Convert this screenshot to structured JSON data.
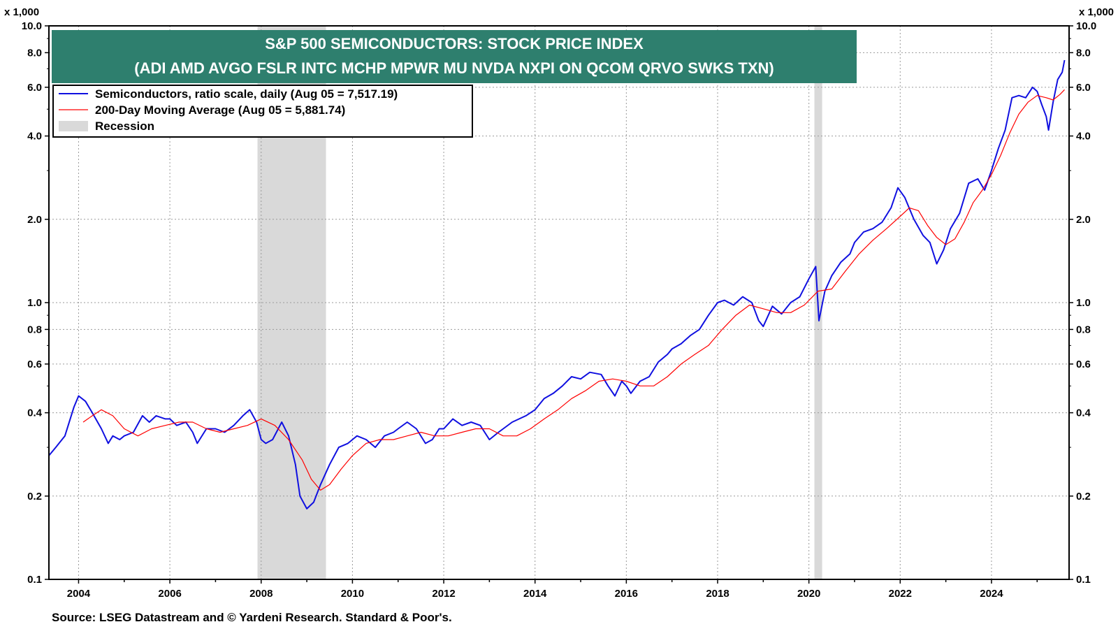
{
  "chart_data": {
    "type": "line",
    "title": "S&P 500 SEMICONDUCTORS: STOCK PRICE INDEX",
    "subtitle": "(ADI AMD AVGO FSLR INTC MCHP MPWR MU NVDA NXPI ON QCOM QRVO SWKS TXN)",
    "y_unit_left": "x 1,000",
    "y_unit_right": "x 1,000",
    "yscale": "log",
    "ylim": [
      0.1,
      10.0
    ],
    "xlim": [
      2003.35,
      2025.7
    ],
    "y_ticks": [
      {
        "value": 0.1,
        "label": "0.1"
      },
      {
        "value": 0.2,
        "label": "0.2"
      },
      {
        "value": 0.4,
        "label": "0.4"
      },
      {
        "value": 0.6,
        "label": "0.6"
      },
      {
        "value": 0.8,
        "label": "0.8"
      },
      {
        "value": 1.0,
        "label": "1.0"
      },
      {
        "value": 2.0,
        "label": "2.0"
      },
      {
        "value": 4.0,
        "label": "4.0"
      },
      {
        "value": 6.0,
        "label": "6.0"
      },
      {
        "value": 8.0,
        "label": "8.0"
      },
      {
        "value": 10.0,
        "label": "10.0"
      }
    ],
    "x_ticks": [
      {
        "value": 2004,
        "label": "2004"
      },
      {
        "value": 2006,
        "label": "2006"
      },
      {
        "value": 2008,
        "label": "2008"
      },
      {
        "value": 2010,
        "label": "2010"
      },
      {
        "value": 2012,
        "label": "2012"
      },
      {
        "value": 2014,
        "label": "2014"
      },
      {
        "value": 2016,
        "label": "2016"
      },
      {
        "value": 2018,
        "label": "2018"
      },
      {
        "value": 2020,
        "label": "2020"
      },
      {
        "value": 2022,
        "label": "2022"
      },
      {
        "value": 2024,
        "label": "2024"
      }
    ],
    "grid": true,
    "recessions": [
      {
        "start": 2007.92,
        "end": 2009.42
      },
      {
        "start": 2020.12,
        "end": 2020.29
      }
    ],
    "series": [
      {
        "name": "Semiconductors, ratio scale, daily (Aug 05 = 7,517.19)",
        "color": "#1010e0",
        "x": [
          2003.35,
          2003.5,
          2003.7,
          2003.9,
          2004.0,
          2004.15,
          2004.3,
          2004.5,
          2004.65,
          2004.75,
          2004.9,
          2005.0,
          2005.2,
          2005.4,
          2005.55,
          2005.7,
          2005.9,
          2006.0,
          2006.15,
          2006.35,
          2006.5,
          2006.6,
          2006.8,
          2007.0,
          2007.2,
          2007.4,
          2007.6,
          2007.75,
          2007.9,
          2008.0,
          2008.1,
          2008.25,
          2008.45,
          2008.6,
          2008.75,
          2008.85,
          2009.0,
          2009.15,
          2009.3,
          2009.5,
          2009.7,
          2009.9,
          2010.1,
          2010.3,
          2010.5,
          2010.7,
          2010.9,
          2011.0,
          2011.2,
          2011.4,
          2011.6,
          2011.75,
          2011.9,
          2012.0,
          2012.2,
          2012.4,
          2012.6,
          2012.8,
          2013.0,
          2013.2,
          2013.5,
          2013.8,
          2014.0,
          2014.2,
          2014.4,
          2014.6,
          2014.8,
          2015.0,
          2015.2,
          2015.45,
          2015.6,
          2015.75,
          2015.9,
          2016.0,
          2016.1,
          2016.3,
          2016.5,
          2016.7,
          2016.9,
          2017.0,
          2017.2,
          2017.4,
          2017.6,
          2017.8,
          2018.0,
          2018.15,
          2018.35,
          2018.55,
          2018.75,
          2018.9,
          2019.0,
          2019.2,
          2019.4,
          2019.6,
          2019.8,
          2020.0,
          2020.15,
          2020.22,
          2020.35,
          2020.5,
          2020.7,
          2020.9,
          2021.0,
          2021.2,
          2021.4,
          2021.6,
          2021.8,
          2021.95,
          2022.1,
          2022.3,
          2022.5,
          2022.65,
          2022.8,
          2022.95,
          2023.1,
          2023.3,
          2023.5,
          2023.7,
          2023.85,
          2024.0,
          2024.15,
          2024.3,
          2024.45,
          2024.6,
          2024.75,
          2024.9,
          2025.0,
          2025.1,
          2025.2,
          2025.25,
          2025.35,
          2025.45,
          2025.55,
          2025.6
        ],
        "values": [
          0.28,
          0.3,
          0.33,
          0.42,
          0.46,
          0.44,
          0.4,
          0.35,
          0.31,
          0.33,
          0.32,
          0.33,
          0.34,
          0.39,
          0.37,
          0.39,
          0.38,
          0.38,
          0.36,
          0.37,
          0.34,
          0.31,
          0.35,
          0.35,
          0.34,
          0.36,
          0.39,
          0.41,
          0.37,
          0.32,
          0.31,
          0.32,
          0.37,
          0.33,
          0.26,
          0.2,
          0.18,
          0.19,
          0.22,
          0.26,
          0.3,
          0.31,
          0.33,
          0.32,
          0.3,
          0.33,
          0.34,
          0.35,
          0.37,
          0.35,
          0.31,
          0.32,
          0.35,
          0.35,
          0.38,
          0.36,
          0.37,
          0.36,
          0.32,
          0.34,
          0.37,
          0.39,
          0.41,
          0.45,
          0.47,
          0.5,
          0.54,
          0.53,
          0.56,
          0.55,
          0.5,
          0.46,
          0.52,
          0.5,
          0.47,
          0.52,
          0.54,
          0.61,
          0.65,
          0.68,
          0.71,
          0.76,
          0.8,
          0.9,
          1.0,
          1.02,
          0.98,
          1.05,
          1.0,
          0.86,
          0.82,
          0.97,
          0.91,
          1.0,
          1.05,
          1.22,
          1.35,
          0.86,
          1.1,
          1.25,
          1.4,
          1.5,
          1.65,
          1.8,
          1.85,
          1.95,
          2.2,
          2.6,
          2.4,
          2.0,
          1.75,
          1.65,
          1.38,
          1.55,
          1.85,
          2.1,
          2.7,
          2.8,
          2.55,
          3.0,
          3.6,
          4.2,
          5.5,
          5.6,
          5.5,
          6.0,
          5.8,
          5.2,
          4.7,
          4.2,
          5.3,
          6.4,
          6.8,
          7.52
        ]
      },
      {
        "name": "200-Day Moving Average (Aug 05 = 5,881.74)",
        "color": "#ff0000",
        "x": [
          2004.1,
          2004.3,
          2004.5,
          2004.75,
          2005.0,
          2005.3,
          2005.6,
          2005.9,
          2006.2,
          2006.5,
          2006.8,
          2007.1,
          2007.4,
          2007.7,
          2008.0,
          2008.3,
          2008.6,
          2008.9,
          2009.1,
          2009.3,
          2009.5,
          2009.75,
          2010.0,
          2010.3,
          2010.6,
          2010.9,
          2011.2,
          2011.5,
          2011.8,
          2012.1,
          2012.4,
          2012.7,
          2013.0,
          2013.3,
          2013.6,
          2013.9,
          2014.2,
          2014.5,
          2014.8,
          2015.1,
          2015.4,
          2015.7,
          2016.0,
          2016.3,
          2016.6,
          2016.9,
          2017.2,
          2017.5,
          2017.8,
          2018.1,
          2018.4,
          2018.7,
          2019.0,
          2019.3,
          2019.6,
          2019.9,
          2020.2,
          2020.5,
          2020.8,
          2021.1,
          2021.4,
          2021.7,
          2022.0,
          2022.2,
          2022.4,
          2022.6,
          2022.8,
          2023.0,
          2023.2,
          2023.4,
          2023.6,
          2023.8,
          2024.0,
          2024.2,
          2024.4,
          2024.6,
          2024.8,
          2025.0,
          2025.2,
          2025.35,
          2025.5,
          2025.6
        ],
        "values": [
          0.37,
          0.39,
          0.41,
          0.39,
          0.35,
          0.33,
          0.35,
          0.36,
          0.37,
          0.37,
          0.35,
          0.34,
          0.35,
          0.36,
          0.38,
          0.36,
          0.32,
          0.27,
          0.23,
          0.21,
          0.22,
          0.25,
          0.28,
          0.31,
          0.32,
          0.32,
          0.33,
          0.34,
          0.33,
          0.33,
          0.34,
          0.35,
          0.35,
          0.33,
          0.33,
          0.35,
          0.38,
          0.41,
          0.45,
          0.48,
          0.52,
          0.53,
          0.52,
          0.5,
          0.5,
          0.54,
          0.6,
          0.65,
          0.7,
          0.8,
          0.9,
          0.98,
          0.95,
          0.92,
          0.92,
          0.98,
          1.1,
          1.12,
          1.3,
          1.5,
          1.68,
          1.85,
          2.05,
          2.2,
          2.15,
          1.9,
          1.72,
          1.62,
          1.7,
          1.95,
          2.3,
          2.55,
          2.9,
          3.4,
          4.1,
          4.8,
          5.3,
          5.6,
          5.5,
          5.4,
          5.65,
          5.88
        ]
      }
    ],
    "legend": {
      "position": "top-left",
      "items": [
        {
          "label": "Semiconductors, ratio scale, daily (Aug 05 = 7,517.19)",
          "kind": "line",
          "color": "#1010e0"
        },
        {
          "label": "200-Day Moving Average (Aug 05 = 5,881.74)",
          "kind": "line",
          "color": "#ff0000"
        },
        {
          "label": "Recession",
          "kind": "box",
          "color": "#d9d9d9"
        }
      ]
    }
  },
  "colors": {
    "title_bg": "#2e7f6e",
    "recession": "#d9d9d9",
    "grid": "#9a9a9a"
  },
  "source": "Source: LSEG Datastream and © Yardeni Research. Standard & Poor's."
}
